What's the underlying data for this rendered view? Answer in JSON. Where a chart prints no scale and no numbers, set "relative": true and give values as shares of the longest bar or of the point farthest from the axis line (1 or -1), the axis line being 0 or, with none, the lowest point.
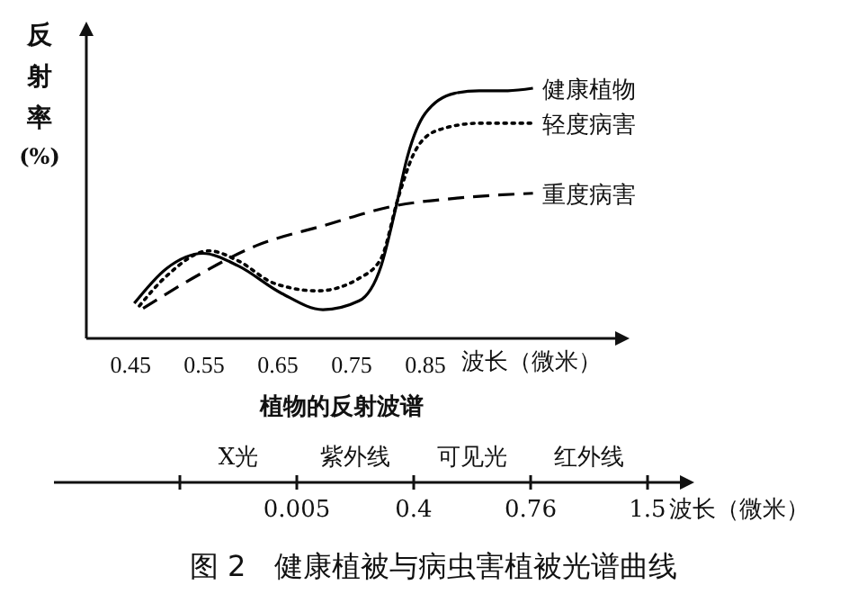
{
  "chart_data": [
    {
      "type": "line",
      "relative": true,
      "ylabel": "反射率(%)",
      "xlabel": "波长（微米）",
      "xlim": [
        0.39,
        1.11
      ],
      "xticks": [
        0.45,
        0.55,
        0.65,
        0.75,
        0.85
      ],
      "legend": false,
      "grid": false,
      "marker": "none",
      "series": [
        {
          "name": "健康植物",
          "color": "#000000",
          "line_style": "solid",
          "x": [
            0.455,
            0.499,
            0.548,
            0.596,
            0.655,
            0.711,
            0.76,
            0.79,
            0.809,
            0.826,
            0.85,
            0.89,
            0.923,
            0.962,
            0.996
          ],
          "values": [
            0.14,
            0.28,
            0.34,
            0.29,
            0.18,
            0.115,
            0.15,
            0.29,
            0.51,
            0.73,
            0.9,
            0.98,
            0.99,
            0.99,
            1.0
          ]
        },
        {
          "name": "轻度病害",
          "color": "#000000",
          "line_style": "dotted",
          "x": [
            0.462,
            0.499,
            0.557,
            0.596,
            0.645,
            0.704,
            0.76,
            0.79,
            0.813,
            0.833,
            0.865,
            0.923,
            0.996
          ],
          "values": [
            0.13,
            0.25,
            0.35,
            0.31,
            0.22,
            0.19,
            0.24,
            0.32,
            0.56,
            0.73,
            0.83,
            0.86,
            0.86
          ]
        },
        {
          "name": "重度病害",
          "color": "#000000",
          "line_style": "dashed",
          "x": [
            0.467,
            0.54,
            0.62,
            0.711,
            0.809,
            0.89,
            0.996
          ],
          "values": [
            0.12,
            0.25,
            0.37,
            0.45,
            0.53,
            0.56,
            0.58
          ]
        }
      ]
    },
    {
      "type": "other",
      "title": "植物的反射波谱",
      "xlabel": "波长（微米）",
      "categories": [
        "X光",
        "紫外线",
        "可见光",
        "红外线"
      ],
      "xticks": [
        {
          "value": null,
          "label": null
        },
        {
          "value": null,
          "label": "0.005"
        },
        {
          "value": null,
          "label": "0.4"
        },
        {
          "value": null,
          "label": "0.76"
        },
        {
          "value": null,
          "label": "1.5"
        }
      ],
      "annotations": [
        "图 2　健康植被与病虫害植被光谱曲线"
      ]
    }
  ]
}
